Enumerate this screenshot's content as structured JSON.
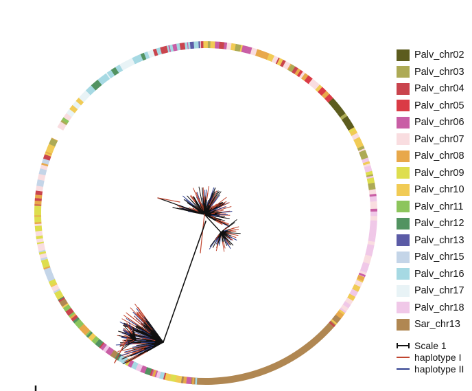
{
  "legend": {
    "chromosomes": [
      {
        "label": "Palv_chr02",
        "color": "#5c5c1e"
      },
      {
        "label": "Palv_chr03",
        "color": "#adaa55"
      },
      {
        "label": "Palv_chr04",
        "color": "#c9444d"
      },
      {
        "label": "Palv_chr05",
        "color": "#da3b45"
      },
      {
        "label": "Palv_chr06",
        "color": "#c95ea5"
      },
      {
        "label": "Palv_chr07",
        "color": "#f9dde0"
      },
      {
        "label": "Palv_chr08",
        "color": "#e8a84a"
      },
      {
        "label": "Palv_chr09",
        "color": "#dede4e"
      },
      {
        "label": "Palv_chr10",
        "color": "#f1cb55"
      },
      {
        "label": "Palv_chr11",
        "color": "#8dc55c"
      },
      {
        "label": "Palv_chr12",
        "color": "#529361"
      },
      {
        "label": "Palv_chr13",
        "color": "#5b5ba6"
      },
      {
        "label": "Palv_chr15",
        "color": "#c4d5e8"
      },
      {
        "label": "Palv_chr16",
        "color": "#a6d9e3"
      },
      {
        "label": "Palv_chr17",
        "color": "#e8f3f6"
      },
      {
        "label": "Palv_chr18",
        "color": "#f0c8e8"
      },
      {
        "label": "Sar_chr13",
        "color": "#b08752"
      }
    ],
    "lines": [
      {
        "label": "Scale 1",
        "color": "#111111",
        "style": "scale-bar"
      },
      {
        "label": "haplotype I",
        "color": "#c0452f",
        "style": "line"
      },
      {
        "label": "haplotype II",
        "color": "#2f3f8f",
        "style": "line"
      }
    ]
  }
}
